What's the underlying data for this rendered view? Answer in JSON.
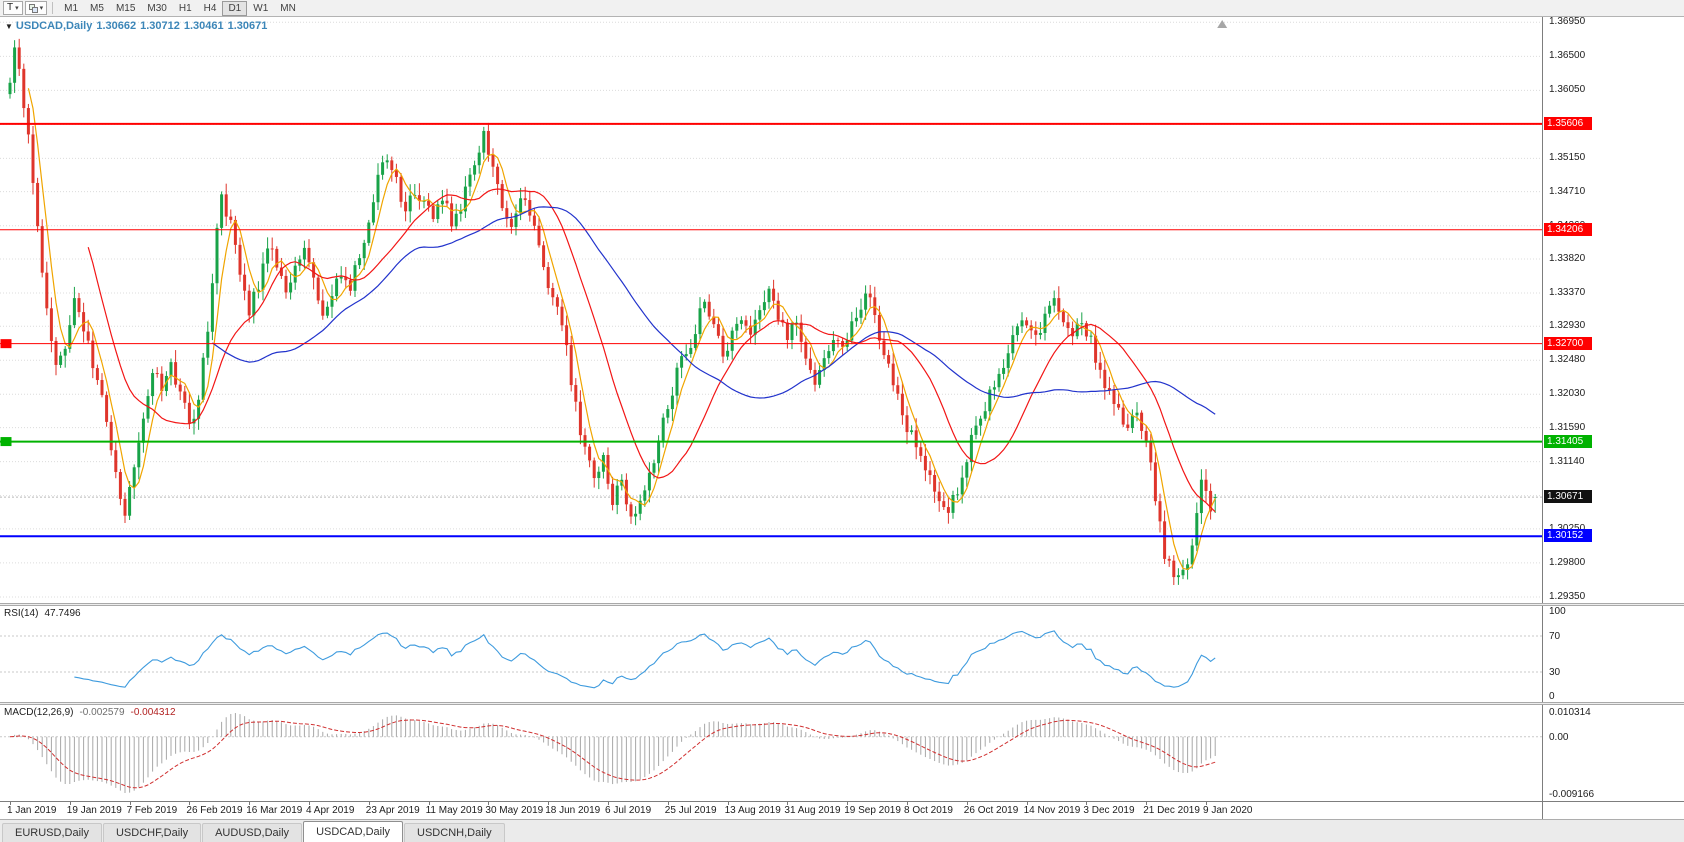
{
  "icons": {
    "collapse": "▼",
    "caret": "▾"
  },
  "toolbar": {
    "t_button_label": "T",
    "timeframes": [
      "M1",
      "M5",
      "M15",
      "M30",
      "H1",
      "H4",
      "D1",
      "W1",
      "MN"
    ],
    "active_timeframe": "D1"
  },
  "chart": {
    "symbol_period": "USDCAD,Daily",
    "ohlc": {
      "open": "1.30662",
      "high": "1.30712",
      "low": "1.30461",
      "close": "1.30671"
    },
    "price_axis_ticks": [
      "1.36950",
      "1.36500",
      "1.36050",
      "1.35600",
      "1.35150",
      "1.34710",
      "1.34260",
      "1.33820",
      "1.33370",
      "1.32930",
      "1.32480",
      "1.32030",
      "1.31590",
      "1.31140",
      "1.30690",
      "1.30250",
      "1.29800",
      "1.29350"
    ]
  },
  "rsi": {
    "name": "RSI(14)",
    "value": "47.7496",
    "axis_labels": [
      "100",
      "70",
      "30",
      "0"
    ]
  },
  "macd": {
    "name": "MACD(12,26,9)",
    "main_value": "-0.002579",
    "signal_value": "-0.004312",
    "axis_top": "0.010314",
    "axis_zero": "0.00",
    "axis_bottom": "-0.009166"
  },
  "tabs": {
    "items": [
      "EURUSD,Daily",
      "USDCHF,Daily",
      "AUDUSD,Daily",
      "USDCAD,Daily",
      "USDCNH,Daily"
    ],
    "active": "USDCAD,Daily"
  },
  "chart_data": {
    "type": "candlestick",
    "title": "USDCAD Daily",
    "bar_count": 263,
    "x_labels": [
      "1 Jan 2019",
      "19 Jan 2019",
      "7 Feb 2019",
      "26 Feb 2019",
      "16 Mar 2019",
      "4 Apr 2019",
      "23 Apr 2019",
      "11 May 2019",
      "30 May 2019",
      "18 Jun 2019",
      "6 Jul 2019",
      "25 Jul 2019",
      "13 Aug 2019",
      "31 Aug 2019",
      "19 Sep 2019",
      "8 Oct 2019",
      "26 Oct 2019",
      "14 Nov 2019",
      "3 Dec 2019",
      "21 Dec 2019",
      "9 Jan 2020"
    ],
    "x_label_bar_interval": 13,
    "ylim": [
      1.2927,
      1.3702
    ],
    "first_open": 1.36,
    "last_bar": {
      "open": 1.30662,
      "high": 1.30712,
      "low": 1.30461,
      "close": 1.30671
    },
    "current_price": 1.30671,
    "close_anchors": [
      [
        0,
        1.3615
      ],
      [
        1,
        1.3658
      ],
      [
        2,
        1.364
      ],
      [
        4,
        1.354
      ],
      [
        6,
        1.342
      ],
      [
        8,
        1.331
      ],
      [
        10,
        1.324
      ],
      [
        12,
        1.3268
      ],
      [
        14,
        1.333
      ],
      [
        16,
        1.329
      ],
      [
        18,
        1.3245
      ],
      [
        20,
        1.3195
      ],
      [
        22,
        1.313
      ],
      [
        24,
        1.3068
      ],
      [
        25,
        1.3045
      ],
      [
        27,
        1.311
      ],
      [
        29,
        1.3175
      ],
      [
        31,
        1.323
      ],
      [
        33,
        1.3215
      ],
      [
        35,
        1.324
      ],
      [
        37,
        1.3205
      ],
      [
        39,
        1.316
      ],
      [
        41,
        1.32
      ],
      [
        43,
        1.329
      ],
      [
        45,
        1.342
      ],
      [
        46,
        1.3462
      ],
      [
        48,
        1.343
      ],
      [
        50,
        1.337
      ],
      [
        52,
        1.3315
      ],
      [
        54,
        1.335
      ],
      [
        56,
        1.34
      ],
      [
        58,
        1.3375
      ],
      [
        60,
        1.334
      ],
      [
        62,
        1.3365
      ],
      [
        64,
        1.3395
      ],
      [
        66,
        1.335
      ],
      [
        68,
        1.331
      ],
      [
        70,
        1.3335
      ],
      [
        72,
        1.3365
      ],
      [
        74,
        1.3345
      ],
      [
        76,
        1.3385
      ],
      [
        78,
        1.343
      ],
      [
        80,
        1.349
      ],
      [
        82,
        1.352
      ],
      [
        84,
        1.3485
      ],
      [
        86,
        1.3445
      ],
      [
        88,
        1.347
      ],
      [
        90,
        1.3455
      ],
      [
        92,
        1.344
      ],
      [
        94,
        1.3465
      ],
      [
        96,
        1.343
      ],
      [
        98,
        1.345
      ],
      [
        100,
        1.349
      ],
      [
        102,
        1.353
      ],
      [
        103,
        1.3558
      ],
      [
        105,
        1.3495
      ],
      [
        107,
        1.345
      ],
      [
        109,
        1.3432
      ],
      [
        111,
        1.3465
      ],
      [
        113,
        1.3442
      ],
      [
        115,
        1.3395
      ],
      [
        117,
        1.334
      ],
      [
        119,
        1.3312
      ],
      [
        121,
        1.3262
      ],
      [
        123,
        1.3185
      ],
      [
        125,
        1.313
      ],
      [
        127,
        1.3092
      ],
      [
        129,
        1.3115
      ],
      [
        131,
        1.3062
      ],
      [
        133,
        1.3085
      ],
      [
        135,
        1.3032
      ],
      [
        137,
        1.3055
      ],
      [
        139,
        1.3095
      ],
      [
        141,
        1.3145
      ],
      [
        143,
        1.3185
      ],
      [
        145,
        1.3235
      ],
      [
        147,
        1.3258
      ],
      [
        149,
        1.3285
      ],
      [
        151,
        1.333
      ],
      [
        153,
        1.3292
      ],
      [
        155,
        1.3255
      ],
      [
        157,
        1.3282
      ],
      [
        159,
        1.33
      ],
      [
        161,
        1.3282
      ],
      [
        163,
        1.3312
      ],
      [
        165,
        1.334
      ],
      [
        167,
        1.3302
      ],
      [
        169,
        1.3282
      ],
      [
        171,
        1.3292
      ],
      [
        173,
        1.3252
      ],
      [
        175,
        1.3222
      ],
      [
        177,
        1.3252
      ],
      [
        179,
        1.3272
      ],
      [
        181,
        1.3262
      ],
      [
        183,
        1.3292
      ],
      [
        185,
        1.3322
      ],
      [
        187,
        1.3332
      ],
      [
        189,
        1.3282
      ],
      [
        191,
        1.3242
      ],
      [
        193,
        1.3202
      ],
      [
        195,
        1.3162
      ],
      [
        197,
        1.3132
      ],
      [
        199,
        1.3102
      ],
      [
        201,
        1.3072
      ],
      [
        203,
        1.3048
      ],
      [
        205,
        1.3062
      ],
      [
        207,
        1.3092
      ],
      [
        209,
        1.3142
      ],
      [
        211,
        1.3172
      ],
      [
        213,
        1.3202
      ],
      [
        215,
        1.3232
      ],
      [
        217,
        1.3262
      ],
      [
        219,
        1.3292
      ],
      [
        221,
        1.3302
      ],
      [
        223,
        1.3282
      ],
      [
        225,
        1.3302
      ],
      [
        227,
        1.3322
      ],
      [
        229,
        1.3292
      ],
      [
        231,
        1.3272
      ],
      [
        233,
        1.3302
      ],
      [
        235,
        1.3272
      ],
      [
        237,
        1.3232
      ],
      [
        239,
        1.3202
      ],
      [
        241,
        1.3182
      ],
      [
        243,
        1.3162
      ],
      [
        245,
        1.3172
      ],
      [
        247,
        1.3148
      ],
      [
        249,
        1.3068
      ],
      [
        251,
        1.2992
      ],
      [
        253,
        1.2962
      ],
      [
        255,
        1.2972
      ],
      [
        257,
        1.3002
      ],
      [
        259,
        1.3092
      ],
      [
        261,
        1.3048
      ],
      [
        262,
        1.3067
      ]
    ],
    "candle_colors": {
      "up": "#18a348",
      "down": "#df352b"
    },
    "moving_averages": [
      {
        "period": 5,
        "color": "#f0a500"
      },
      {
        "period": 18,
        "color": "#f21616"
      },
      {
        "period": 45,
        "color": "#2233cc"
      }
    ],
    "horizontal_lines": [
      {
        "price": 1.35606,
        "label": "1.35606",
        "color": "#ff0000",
        "width": 2,
        "left_tag": false
      },
      {
        "price": 1.34206,
        "label": "1.34206",
        "color": "#ff0000",
        "width": 1,
        "left_tag": false
      },
      {
        "price": 1.327,
        "label": "1.32700",
        "color": "#ff0000",
        "width": 1,
        "left_tag": true
      },
      {
        "price": 1.31405,
        "label": "1.31405",
        "color": "#00b200",
        "width": 2,
        "left_tag": true
      },
      {
        "price": 1.30152,
        "label": "1.30152",
        "color": "#0000ff",
        "width": 2,
        "left_tag": false
      }
    ],
    "rsi": {
      "period": 14,
      "current": 47.7496,
      "levels": [
        70,
        30
      ],
      "range": [
        0,
        100
      ],
      "color": "#3e9bde"
    },
    "macd": {
      "fast": 12,
      "slow": 26,
      "signal": 9,
      "current_main": -0.002579,
      "current_signal": -0.004312,
      "histogram_color": "#a8a8a8",
      "signal_color": "#d03030"
    }
  }
}
